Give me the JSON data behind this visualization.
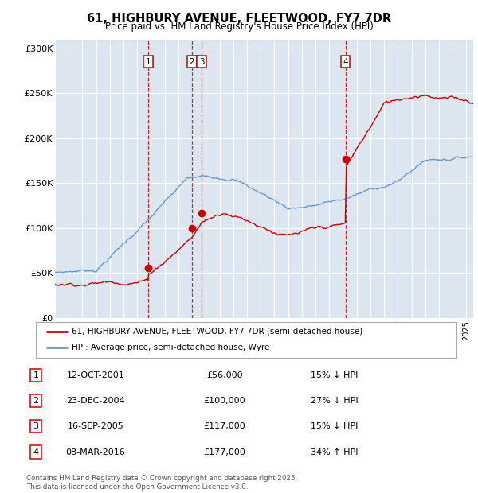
{
  "title": "61, HIGHBURY AVENUE, FLEETWOOD, FY7 7DR",
  "subtitle": "Price paid vs. HM Land Registry's House Price Index (HPI)",
  "background_color": "#ffffff",
  "plot_bg_color": "#dce6f1",
  "grid_color": "#ffffff",
  "ylim": [
    0,
    310000
  ],
  "yticks": [
    0,
    50000,
    100000,
    150000,
    200000,
    250000,
    300000
  ],
  "ytick_labels": [
    "£0",
    "£50K",
    "£100K",
    "£150K",
    "£200K",
    "£250K",
    "£300K"
  ],
  "legend_line1": "61, HIGHBURY AVENUE, FLEETWOOD, FY7 7DR (semi-detached house)",
  "legend_line2": "HPI: Average price, semi-detached house, Wyre",
  "line1_color": "#cc0000",
  "line2_color": "#6699cc",
  "sale_decimal": [
    2001.79,
    2004.98,
    2005.71,
    2016.18
  ],
  "sale_prices": [
    56000,
    100000,
    117000,
    177000
  ],
  "sale_labels": [
    "1",
    "2",
    "3",
    "4"
  ],
  "sale_hpi_diff": [
    "15% ↓ HPI",
    "27% ↓ HPI",
    "15% ↓ HPI",
    "34% ↑ HPI"
  ],
  "table_dates": [
    "12-OCT-2001",
    "23-DEC-2004",
    "16-SEP-2005",
    "08-MAR-2016"
  ],
  "table_prices": [
    "£56,000",
    "£100,000",
    "£117,000",
    "£177,000"
  ],
  "footer": "Contains HM Land Registry data © Crown copyright and database right 2025.\nThis data is licensed under the Open Government Licence v3.0.",
  "xstart": 1995.0,
  "xend": 2025.5
}
